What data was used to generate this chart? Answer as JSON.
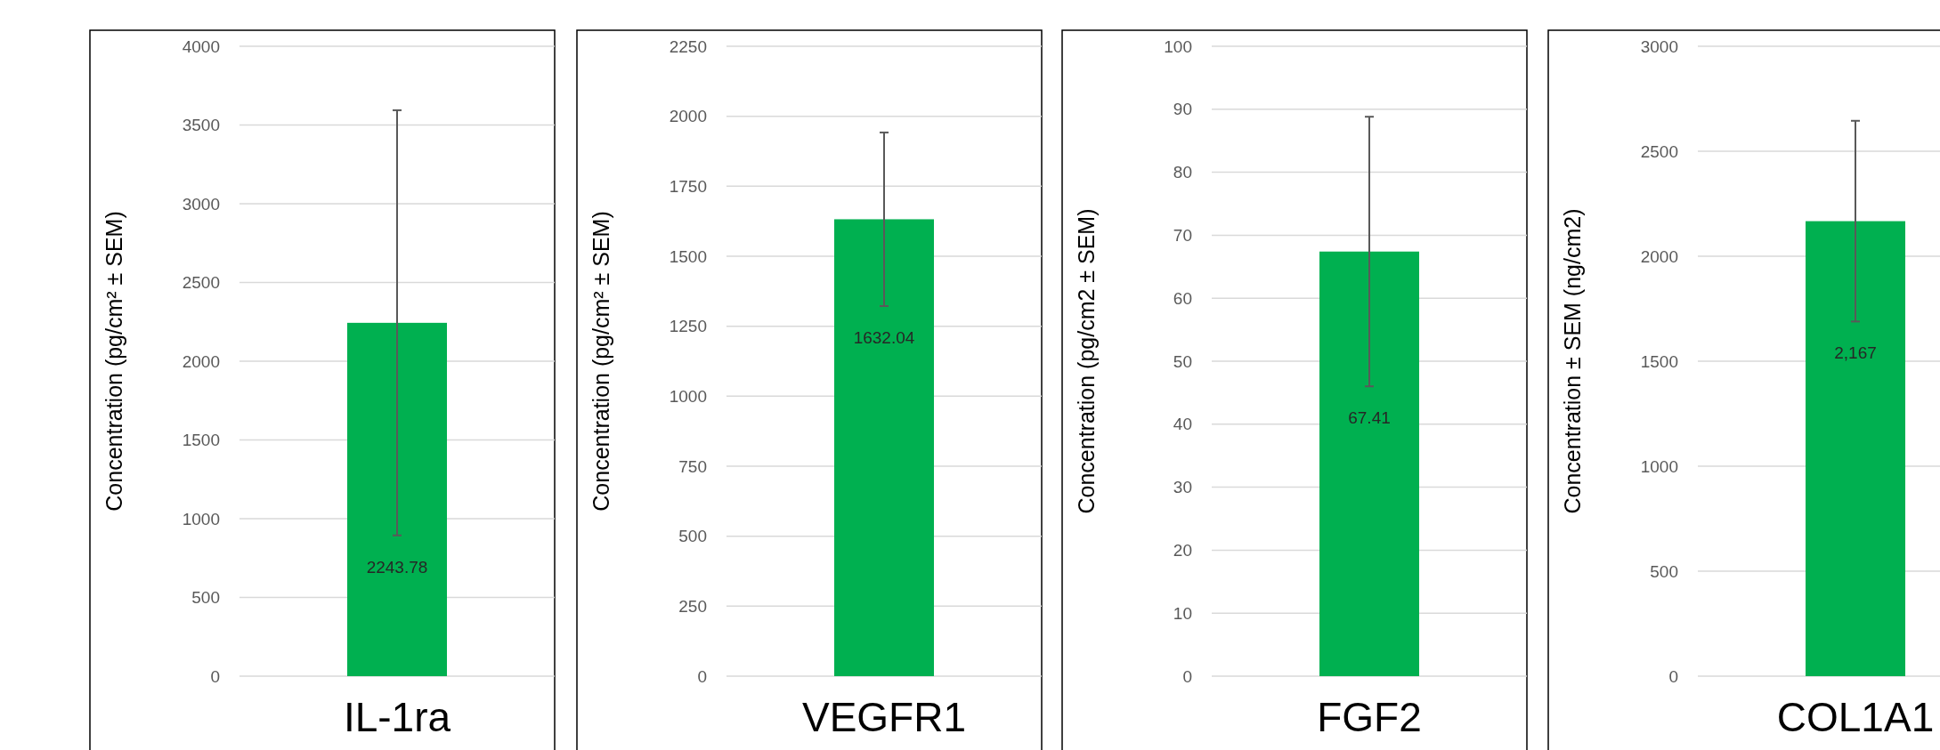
{
  "chart_data": [
    {
      "type": "bar",
      "categories": [
        "IL-1ra"
      ],
      "values": [
        2243.78
      ],
      "errors": [
        1350
      ],
      "color": "#00b050",
      "ylabel": "Concentration (pg/cm² ± SEM)",
      "ylim": [
        0,
        4000
      ],
      "yticks": [
        0,
        500,
        1000,
        1500,
        2000,
        2500,
        3000,
        3500,
        4000
      ],
      "grid": "y",
      "data_labels": true
    },
    {
      "type": "bar",
      "categories": [
        "VEGFR1"
      ],
      "values": [
        1632.04
      ],
      "errors": [
        310
      ],
      "color": "#00b050",
      "ylabel": "Concentration (pg/cm² ± SEM)",
      "ylim": [
        0,
        2250
      ],
      "yticks": [
        0,
        250,
        500,
        750,
        1000,
        1250,
        1500,
        1750,
        2000,
        2250
      ],
      "grid": "y",
      "data_labels": true
    },
    {
      "type": "bar",
      "categories": [
        "FGF2"
      ],
      "values": [
        67.41
      ],
      "errors": [
        21.4
      ],
      "color": "#00b050",
      "ylabel": "Concentration (pg/cm2 ± SEM)",
      "ylim": [
        0,
        100
      ],
      "yticks": [
        0,
        10,
        20,
        30,
        40,
        50,
        60,
        70,
        80,
        90,
        100
      ],
      "grid": "y",
      "data_labels": true
    },
    {
      "type": "bar",
      "categories": [
        "COL1A1"
      ],
      "values": [
        2167
      ],
      "value_labels": [
        "2,167"
      ],
      "errors": [
        478
      ],
      "color": "#00b050",
      "ylabel": "Concentration ± SEM (ng/cm2)",
      "ylim": [
        0,
        3000
      ],
      "yticks": [
        0,
        500,
        1000,
        1500,
        2000,
        2500,
        3000
      ],
      "grid": "y"
    }
  ]
}
